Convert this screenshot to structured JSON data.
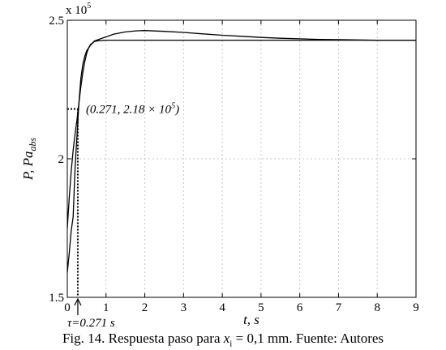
{
  "chart_data": {
    "type": "line",
    "xlabel": "t, s",
    "ylabel": "P, Pa",
    "ylabel_sub": "abs",
    "xlim": [
      0,
      9
    ],
    "ylim": [
      150000,
      250000
    ],
    "x_ticks": [
      0,
      1,
      2,
      3,
      4,
      5,
      6,
      7,
      8,
      9
    ],
    "y_ticks": [
      150000,
      200000,
      250000
    ],
    "y_tick_labels": [
      "1.5",
      "2",
      "2.5"
    ],
    "y_multiplier": "x 10",
    "y_multiplier_exp": "5",
    "grid": true,
    "series": [
      {
        "x": [
          0,
          0.05,
          0.1,
          0.15,
          0.2,
          0.25,
          0.3,
          0.35,
          0.4,
          0.45,
          0.5,
          0.6,
          0.7,
          0.8,
          1.0,
          1.2,
          1.5,
          1.8,
          2.0,
          2.5,
          3.0,
          3.5,
          4.0,
          4.5,
          5.0,
          5.5,
          6.0,
          6.5,
          7.0,
          7.5,
          8.0,
          8.5,
          9.0
        ],
        "y": [
          159000,
          166000,
          174000,
          179000,
          197000,
          208000,
          220000,
          229000,
          234000,
          237000,
          239000,
          241000,
          242500,
          243000,
          244000,
          245000,
          245800,
          246200,
          246300,
          246000,
          245600,
          245100,
          244600,
          244200,
          243800,
          243500,
          243300,
          243100,
          243000,
          242900,
          242800,
          242800,
          242800
        ]
      },
      {
        "x": [
          0,
          0.05,
          0.1,
          0.15,
          0.2,
          0.25,
          0.3,
          0.35,
          0.4,
          0.45,
          0.5,
          0.55,
          0.6,
          0.7,
          0.8,
          0.9,
          1.0,
          2.0,
          3.0,
          4.0,
          5.0,
          6.0,
          7.0,
          8.0,
          9.0
        ],
        "y": [
          175000,
          186000,
          195500,
          203000,
          209000,
          214000,
          220000,
          226000,
          231000,
          235000,
          238000,
          240000,
          241300,
          242300,
          242600,
          242700,
          242800,
          242800,
          242800,
          242800,
          242800,
          242800,
          242800,
          242800,
          242800
        ]
      }
    ],
    "marked_point": {
      "x": 0.271,
      "y": 218000
    },
    "annotations": {
      "point_label": "(0.271, 2.18 × 10",
      "point_label_exp": "5",
      "point_label_close": ")",
      "tau_label": "τ=0.271 s"
    }
  },
  "caption": {
    "prefix": "Fig. 14. Respuesta paso para ",
    "var": "x",
    "var_sub": "i",
    "suffix": " = 0,1 mm. Fuente: Autores"
  },
  "colors": {
    "line": "#000000",
    "grid": "#c8c8c8",
    "background": "#ffffff"
  }
}
